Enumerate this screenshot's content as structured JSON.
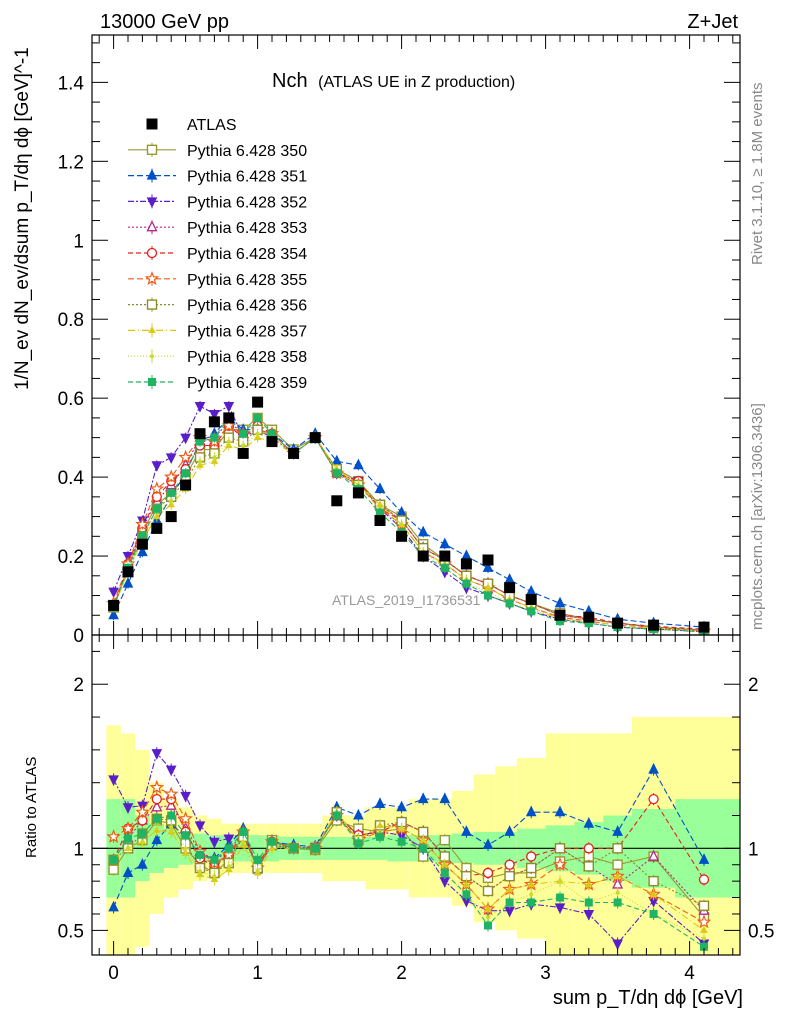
{
  "header": {
    "energy_label": "13000 GeV pp",
    "process_label": "Z+Jet",
    "rivet_label": "Rivet 3.1.10, ≥ 1.8M events",
    "mcplots_label": "mcplots.cern.ch [arXiv:1306.3436]",
    "analysis_id": "ATLAS_2019_I1736531",
    "title_main": "Nch",
    "title_sub": "(ATLAS UE in Z production)"
  },
  "colors": {
    "data": "#000000",
    "band_inner": "#99ff99",
    "band_outer": "#ffff99",
    "series": [
      "#999933",
      "#0050c8",
      "#5a1ec8",
      "#b4288c",
      "#e61e1e",
      "#f05a14",
      "#8c8c28",
      "#dcc814",
      "#c8dc28",
      "#1eb464"
    ]
  },
  "chart_data": [
    {
      "type": "scatter",
      "name": "main",
      "ylabel": "1/N_ev dN_ev/dsum p_T/dη dϕ [GeV]^-1",
      "xlim": [
        -0.15,
        4.35
      ],
      "ylim": [
        0,
        1.52
      ],
      "yticks": [
        "0",
        "0.2",
        "0.4",
        "0.6",
        "0.8",
        "1",
        "1.2",
        "1.4"
      ],
      "x": [
        0.0,
        0.1,
        0.2,
        0.3,
        0.4,
        0.5,
        0.6,
        0.7,
        0.8,
        0.9,
        1.0,
        1.1,
        1.25,
        1.4,
        1.55,
        1.7,
        1.85,
        2.0,
        2.15,
        2.3,
        2.45,
        2.6,
        2.75,
        2.9,
        3.1,
        3.3,
        3.5,
        3.75,
        4.1
      ],
      "data": {
        "name": "ATLAS",
        "values": [
          0.075,
          0.16,
          0.23,
          0.27,
          0.3,
          0.38,
          0.51,
          0.54,
          0.55,
          0.46,
          0.59,
          0.49,
          0.46,
          0.5,
          0.34,
          0.36,
          0.29,
          0.25,
          0.2,
          0.2,
          0.18,
          0.19,
          0.12,
          0.09,
          0.05,
          0.045,
          0.03,
          0.025,
          0.02
        ]
      },
      "series": [
        {
          "name": "Pythia 6.428 350",
          "values": [
            0.07,
            0.17,
            0.26,
            0.33,
            0.36,
            0.4,
            0.47,
            0.47,
            0.52,
            0.52,
            0.55,
            0.52,
            0.47,
            0.5,
            0.42,
            0.39,
            0.33,
            0.3,
            0.23,
            0.19,
            0.15,
            0.13,
            0.1,
            0.08,
            0.055,
            0.04,
            0.03,
            0.02,
            0.012
          ],
          "marker": "square-open",
          "dash": ""
        },
        {
          "name": "Pythia 6.428 351",
          "values": [
            0.05,
            0.13,
            0.21,
            0.29,
            0.35,
            0.41,
            0.49,
            0.51,
            0.55,
            0.52,
            0.52,
            0.51,
            0.47,
            0.51,
            0.44,
            0.43,
            0.37,
            0.31,
            0.26,
            0.23,
            0.2,
            0.17,
            0.14,
            0.11,
            0.08,
            0.06,
            0.04,
            0.03,
            0.02
          ],
          "marker": "triangle-up",
          "dash": "6,3"
        },
        {
          "name": "Pythia 6.428 352",
          "values": [
            0.11,
            0.2,
            0.29,
            0.43,
            0.45,
            0.5,
            0.58,
            0.56,
            0.58,
            0.5,
            0.52,
            0.5,
            0.46,
            0.5,
            0.41,
            0.39,
            0.32,
            0.27,
            0.2,
            0.16,
            0.12,
            0.1,
            0.08,
            0.06,
            0.04,
            0.03,
            0.02,
            0.015,
            0.008
          ],
          "marker": "triangle-down",
          "dash": "6,2,2,2"
        },
        {
          "name": "Pythia 6.428 353",
          "values": [
            0.07,
            0.17,
            0.27,
            0.34,
            0.38,
            0.43,
            0.5,
            0.5,
            0.54,
            0.51,
            0.52,
            0.5,
            0.46,
            0.5,
            0.41,
            0.38,
            0.33,
            0.29,
            0.22,
            0.19,
            0.15,
            0.13,
            0.1,
            0.08,
            0.05,
            0.04,
            0.03,
            0.02,
            0.012
          ],
          "marker": "triangle-open",
          "dash": "2,2"
        },
        {
          "name": "Pythia 6.428 354",
          "values": [
            0.07,
            0.18,
            0.27,
            0.35,
            0.39,
            0.42,
            0.48,
            0.48,
            0.53,
            0.5,
            0.53,
            0.51,
            0.46,
            0.5,
            0.41,
            0.39,
            0.32,
            0.29,
            0.22,
            0.19,
            0.15,
            0.13,
            0.1,
            0.08,
            0.05,
            0.045,
            0.03,
            0.022,
            0.015
          ],
          "marker": "circle-open",
          "dash": "5,3"
        },
        {
          "name": "Pythia 6.428 355",
          "values": [
            0.08,
            0.18,
            0.28,
            0.37,
            0.4,
            0.45,
            0.5,
            0.49,
            0.53,
            0.51,
            0.52,
            0.51,
            0.46,
            0.5,
            0.41,
            0.38,
            0.32,
            0.28,
            0.21,
            0.18,
            0.14,
            0.12,
            0.09,
            0.07,
            0.045,
            0.035,
            0.025,
            0.018,
            0.01
          ],
          "marker": "star-open",
          "dash": "6,3"
        },
        {
          "name": "Pythia 6.428 356",
          "values": [
            0.07,
            0.16,
            0.25,
            0.32,
            0.35,
            0.39,
            0.45,
            0.46,
            0.5,
            0.49,
            0.52,
            0.5,
            0.46,
            0.5,
            0.42,
            0.38,
            0.33,
            0.29,
            0.22,
            0.19,
            0.15,
            0.13,
            0.1,
            0.08,
            0.05,
            0.04,
            0.03,
            0.02,
            0.013
          ],
          "marker": "square-open",
          "dash": "2,2"
        },
        {
          "name": "Pythia 6.428 357",
          "values": [
            0.07,
            0.16,
            0.24,
            0.3,
            0.33,
            0.37,
            0.43,
            0.44,
            0.48,
            0.47,
            0.5,
            0.49,
            0.46,
            0.5,
            0.42,
            0.38,
            0.33,
            0.28,
            0.21,
            0.18,
            0.14,
            0.12,
            0.09,
            0.07,
            0.04,
            0.035,
            0.025,
            0.018,
            0.01
          ],
          "marker": "tri-small",
          "dash": "7,3,1,3"
        },
        {
          "name": "Pythia 6.428 358",
          "values": [
            0.07,
            0.16,
            0.24,
            0.31,
            0.34,
            0.38,
            0.44,
            0.45,
            0.49,
            0.48,
            0.51,
            0.5,
            0.46,
            0.5,
            0.41,
            0.38,
            0.32,
            0.28,
            0.21,
            0.17,
            0.13,
            0.11,
            0.08,
            0.065,
            0.04,
            0.03,
            0.022,
            0.015,
            0.009
          ],
          "marker": "dot",
          "dash": "1,2"
        },
        {
          "name": "Pythia 6.428 359",
          "values": [
            0.07,
            0.17,
            0.25,
            0.32,
            0.36,
            0.41,
            0.49,
            0.5,
            0.55,
            0.51,
            0.55,
            0.51,
            0.46,
            0.5,
            0.41,
            0.37,
            0.31,
            0.26,
            0.2,
            0.17,
            0.13,
            0.1,
            0.08,
            0.06,
            0.035,
            0.03,
            0.02,
            0.015,
            0.008
          ],
          "marker": "square-filled",
          "dash": "5,3"
        }
      ]
    },
    {
      "type": "scatter",
      "name": "ratio",
      "xlabel": "sum p_T/dη dϕ [GeV]",
      "ylabel": "Ratio to ATLAS",
      "xlim": [
        -0.15,
        4.35
      ],
      "ylim": [
        0.35,
        2.3
      ],
      "xticks": [
        "0",
        "1",
        "2",
        "3",
        "4"
      ],
      "yticks": [
        "0.5",
        "1",
        "2"
      ],
      "band_edges": [
        -0.05,
        0.05,
        0.15,
        0.25,
        0.35,
        0.45,
        0.55,
        0.65,
        0.75,
        0.85,
        0.95,
        1.05,
        1.15,
        1.3,
        1.45,
        1.6,
        1.75,
        1.9,
        2.05,
        2.2,
        2.35,
        2.5,
        2.65,
        2.8,
        3.0,
        3.2,
        3.4,
        3.6,
        3.9,
        4.35
      ],
      "band_inner": [
        0.3,
        0.3,
        0.2,
        0.15,
        0.12,
        0.1,
        0.09,
        0.08,
        0.08,
        0.08,
        0.08,
        0.08,
        0.07,
        0.07,
        0.07,
        0.07,
        0.07,
        0.08,
        0.08,
        0.08,
        0.09,
        0.1,
        0.1,
        0.12,
        0.14,
        0.16,
        0.2,
        0.24,
        0.3
      ],
      "band_outer": [
        0.75,
        0.7,
        0.6,
        0.4,
        0.3,
        0.25,
        0.2,
        0.18,
        0.15,
        0.15,
        0.15,
        0.15,
        0.15,
        0.15,
        0.2,
        0.2,
        0.25,
        0.25,
        0.3,
        0.3,
        0.35,
        0.45,
        0.5,
        0.55,
        0.7,
        0.7,
        0.7,
        0.8,
        0.8
      ],
      "series": [
        {
          "name": "Pythia 6.428 350",
          "values": [
            0.87,
            1.0,
            1.05,
            1.17,
            1.15,
            1.0,
            0.9,
            0.85,
            0.93,
            1.08,
            0.88,
            1.05,
            1.0,
            0.99,
            1.17,
            1.12,
            1.1,
            1.12,
            0.95,
            1.05,
            0.88,
            0.82,
            0.85,
            0.85,
            0.92,
            0.95,
            0.9,
            0.95,
            0.58
          ]
        },
        {
          "name": "Pythia 6.428 351",
          "values": [
            0.64,
            0.85,
            0.9,
            1.05,
            1.15,
            1.07,
            0.96,
            0.94,
            1.02,
            1.12,
            0.87,
            1.04,
            1.02,
            1.01,
            1.25,
            1.2,
            1.27,
            1.25,
            1.3,
            1.3,
            1.1,
            1.02,
            1.1,
            1.22,
            1.22,
            1.15,
            1.1,
            1.48,
            0.93
          ]
        },
        {
          "name": "Pythia 6.428 352",
          "values": [
            1.42,
            1.25,
            1.26,
            1.58,
            1.48,
            1.32,
            1.14,
            1.04,
            1.06,
            1.09,
            0.88,
            1.02,
            1.0,
            1.01,
            1.2,
            1.08,
            1.1,
            1.08,
            1.0,
            0.8,
            0.68,
            0.62,
            0.62,
            0.66,
            0.64,
            0.6,
            0.42,
            0.68,
            0.42
          ]
        },
        {
          "name": "Pythia 6.428 353",
          "values": [
            0.93,
            1.06,
            1.17,
            1.25,
            1.26,
            1.12,
            0.98,
            0.93,
            0.98,
            1.1,
            0.88,
            1.02,
            1.0,
            1.01,
            1.2,
            1.05,
            1.12,
            1.16,
            1.1,
            0.95,
            0.83,
            0.74,
            0.83,
            0.88,
            1.0,
            0.89,
            0.78,
            0.95,
            0.62
          ]
        },
        {
          "name": "Pythia 6.428 354",
          "values": [
            0.93,
            1.12,
            1.17,
            1.3,
            1.3,
            1.1,
            0.94,
            0.89,
            0.96,
            1.08,
            0.9,
            1.04,
            1.0,
            1.0,
            1.2,
            1.08,
            1.1,
            1.16,
            1.1,
            0.95,
            0.83,
            0.85,
            0.9,
            0.95,
            1.0,
            1.0,
            1.0,
            1.3,
            0.81
          ]
        },
        {
          "name": "Pythia 6.428 355",
          "values": [
            1.07,
            1.12,
            1.22,
            1.37,
            1.33,
            1.18,
            0.98,
            0.91,
            0.96,
            1.1,
            0.88,
            1.04,
            1.0,
            1.0,
            1.2,
            1.05,
            1.1,
            1.12,
            1.05,
            0.9,
            0.78,
            0.63,
            0.75,
            0.78,
            0.9,
            0.78,
            0.83,
            0.72,
            0.55
          ]
        },
        {
          "name": "Pythia 6.428 356",
          "values": [
            0.93,
            1.0,
            1.09,
            1.18,
            1.17,
            1.03,
            0.88,
            0.85,
            0.91,
            1.07,
            0.88,
            1.02,
            1.0,
            1.0,
            1.22,
            1.05,
            1.14,
            1.16,
            1.1,
            0.95,
            0.83,
            0.74,
            0.83,
            0.88,
            1.0,
            0.89,
            1.0,
            0.8,
            0.65
          ]
        },
        {
          "name": "Pythia 6.428 357",
          "values": [
            0.93,
            1.0,
            1.04,
            1.11,
            1.1,
            0.97,
            0.84,
            0.81,
            0.87,
            1.02,
            0.85,
            1.0,
            1.0,
            1.0,
            1.22,
            1.05,
            1.14,
            1.12,
            1.05,
            0.9,
            0.78,
            0.63,
            0.75,
            0.78,
            0.8,
            0.78,
            0.83,
            0.72,
            0.5
          ]
        },
        {
          "name": "Pythia 6.428 358",
          "values": [
            0.93,
            1.0,
            1.04,
            1.15,
            1.13,
            1.0,
            0.86,
            0.83,
            0.89,
            1.04,
            0.86,
            1.02,
            1.0,
            1.0,
            1.2,
            1.05,
            1.1,
            1.12,
            1.05,
            0.85,
            0.72,
            0.58,
            0.67,
            0.72,
            0.8,
            0.67,
            0.73,
            0.6,
            0.45
          ]
        },
        {
          "name": "Pythia 6.428 359",
          "values": [
            0.93,
            1.06,
            1.09,
            1.18,
            1.2,
            1.08,
            0.96,
            0.93,
            1.0,
            1.1,
            0.93,
            1.04,
            1.0,
            1.0,
            1.2,
            1.03,
            1.07,
            1.04,
            1.0,
            0.85,
            0.72,
            0.53,
            0.67,
            0.67,
            0.7,
            0.67,
            0.67,
            0.6,
            0.4
          ]
        }
      ]
    }
  ]
}
